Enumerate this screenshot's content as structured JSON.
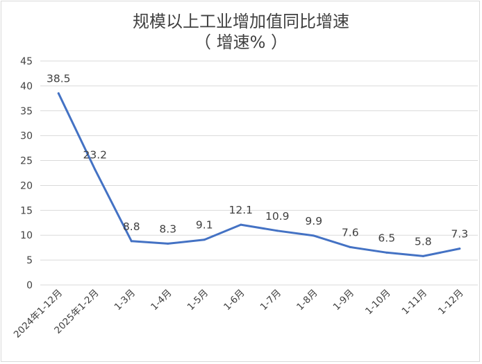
{
  "chart_data": {
    "type": "line",
    "title_line1": "规模以上工业增加值同比增速",
    "title_line2": "（ 增速% ）",
    "categories": [
      "2024年1-12月",
      "2025年1-2月",
      "1-3月",
      "1-4月",
      "1-5月",
      "1-6月",
      "1-7月",
      "1-8月",
      "1-9月",
      "1-10月",
      "1-11月",
      "1-12月"
    ],
    "series": [
      {
        "values": [
          38.5,
          23.2,
          8.8,
          8.3,
          9.1,
          12.1,
          10.9,
          9.9,
          7.6,
          6.5,
          5.8,
          7.3
        ]
      }
    ],
    "y_ticks": [
      0,
      5,
      10,
      15,
      20,
      25,
      30,
      35,
      40,
      45
    ],
    "ylim": [
      0,
      45
    ],
    "grid": true,
    "line_color": "#4472c4",
    "grid_color": "#d9d9d9",
    "text_color": "#404040"
  }
}
